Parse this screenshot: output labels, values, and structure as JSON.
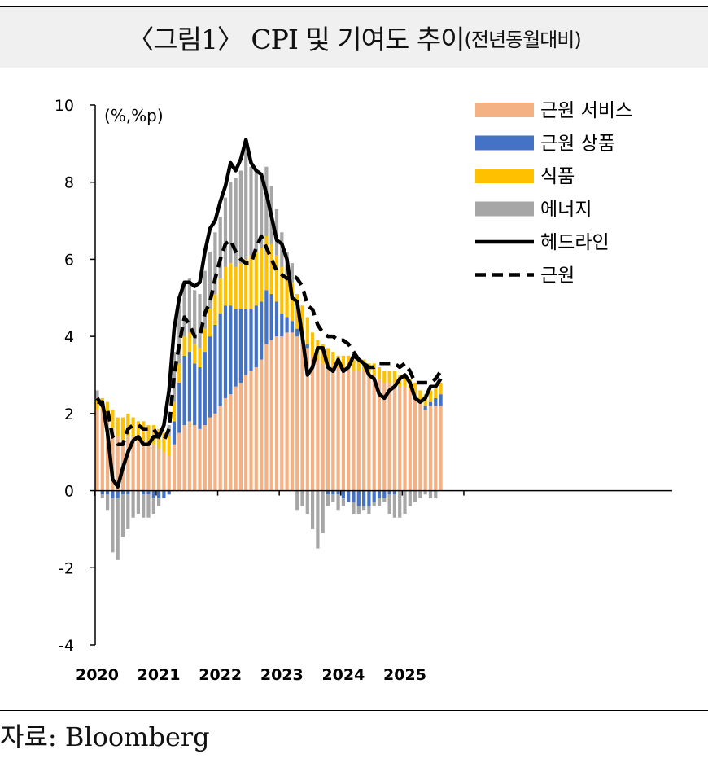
{
  "title": {
    "main": "〈그림1〉 CPI 및 기여도 추이",
    "sub": "(전년동월대비)"
  },
  "source": "자료: Bloomberg",
  "chart_data": {
    "type": "bar",
    "stacked": true,
    "unit_label": "(%,%p)",
    "ylim": [
      -4,
      10
    ],
    "yticks": [
      -4,
      -2,
      0,
      2,
      4,
      6,
      8,
      10
    ],
    "years": [
      "2020",
      "2021",
      "2022",
      "2023",
      "2024",
      "2025"
    ],
    "start_month": "2020-01",
    "months": 68,
    "legend_position": "top-right",
    "grid": false,
    "colors": {
      "core_services": "#F4B183",
      "core_goods": "#4472C4",
      "food": "#FFC000",
      "energy": "#A6A6A6",
      "headline": "#000000",
      "core": "#000000"
    },
    "legend": [
      {
        "key": "core_services",
        "label": "근원 서비스",
        "kind": "bar"
      },
      {
        "key": "core_goods",
        "label": "근원 상품",
        "kind": "bar"
      },
      {
        "key": "food",
        "label": "식품",
        "kind": "bar"
      },
      {
        "key": "energy",
        "label": "에너지",
        "kind": "bar"
      },
      {
        "key": "headline",
        "label": "헤드라인",
        "kind": "line"
      },
      {
        "key": "core",
        "label": "근원",
        "kind": "dash"
      }
    ],
    "series": {
      "core_services": [
        2.1,
        2.1,
        2.0,
        1.6,
        1.4,
        1.3,
        1.4,
        1.4,
        1.3,
        1.3,
        1.2,
        1.2,
        1.1,
        1.0,
        0.9,
        1.2,
        1.5,
        1.7,
        1.8,
        1.7,
        1.6,
        1.7,
        1.9,
        2.0,
        2.2,
        2.4,
        2.5,
        2.7,
        2.8,
        3.0,
        3.1,
        3.2,
        3.4,
        3.8,
        3.9,
        4.0,
        4.0,
        4.1,
        4.1,
        4.0,
        3.9,
        3.7,
        3.5,
        3.4,
        3.3,
        3.3,
        3.2,
        3.2,
        3.2,
        3.2,
        3.1,
        3.1,
        3.1,
        3.0,
        3.0,
        2.9,
        2.8,
        2.8,
        2.8,
        2.7,
        2.7,
        2.6,
        2.5,
        2.3,
        2.1,
        2.2,
        2.2,
        2.2
      ],
      "core_goods": [
        0.0,
        -0.1,
        -0.1,
        -0.2,
        -0.2,
        -0.1,
        -0.1,
        0.0,
        0.0,
        -0.1,
        -0.1,
        -0.2,
        -0.2,
        -0.2,
        -0.1,
        0.6,
        1.3,
        1.8,
        1.8,
        1.6,
        1.6,
        1.9,
        2.1,
        2.3,
        2.4,
        2.4,
        2.3,
        2.0,
        1.9,
        1.7,
        1.6,
        1.6,
        1.5,
        1.4,
        1.2,
        0.9,
        0.6,
        0.4,
        0.3,
        0.2,
        0.1,
        0.1,
        0.0,
        0.0,
        0.0,
        -0.1,
        -0.1,
        -0.1,
        -0.2,
        -0.3,
        -0.3,
        -0.4,
        -0.4,
        -0.4,
        -0.3,
        -0.2,
        -0.2,
        -0.1,
        -0.1,
        0.0,
        0.0,
        0.0,
        0.0,
        0.0,
        0.1,
        0.1,
        0.2,
        0.3
      ],
      "food": [
        0.3,
        0.3,
        0.3,
        0.5,
        0.5,
        0.6,
        0.6,
        0.5,
        0.5,
        0.5,
        0.5,
        0.5,
        0.5,
        0.5,
        0.5,
        0.5,
        0.5,
        0.5,
        0.5,
        0.5,
        0.5,
        0.6,
        0.7,
        0.8,
        0.9,
        1.0,
        1.1,
        1.1,
        1.2,
        1.3,
        1.4,
        1.4,
        1.4,
        1.4,
        1.3,
        1.2,
        1.2,
        1.1,
        1.0,
        0.9,
        0.8,
        0.7,
        0.6,
        0.5,
        0.5,
        0.4,
        0.4,
        0.3,
        0.3,
        0.3,
        0.3,
        0.3,
        0.3,
        0.3,
        0.3,
        0.3,
        0.3,
        0.3,
        0.3,
        0.3,
        0.3,
        0.3,
        0.3,
        0.3,
        0.3,
        0.3,
        0.3,
        0.3
      ],
      "energy": [
        0.2,
        -0.1,
        -0.4,
        -1.4,
        -1.6,
        -1.1,
        -0.9,
        -0.7,
        -0.6,
        -0.6,
        -0.6,
        -0.4,
        -0.2,
        0.0,
        0.3,
        1.3,
        1.5,
        1.4,
        1.4,
        1.4,
        1.4,
        1.5,
        1.5,
        1.6,
        1.6,
        1.8,
        2.1,
        2.3,
        2.4,
        2.9,
        2.3,
        2.1,
        1.9,
        1.8,
        1.5,
        1.2,
        0.9,
        0.6,
        0.5,
        -0.5,
        -0.4,
        -0.6,
        -1.0,
        -1.5,
        -1.1,
        -0.3,
        -0.2,
        -0.4,
        -0.2,
        0.0,
        -0.3,
        -0.2,
        -0.1,
        -0.2,
        -0.1,
        -0.2,
        -0.1,
        -0.5,
        -0.6,
        -0.7,
        -0.6,
        -0.4,
        -0.3,
        -0.2,
        -0.1,
        -0.2,
        -0.2,
        0.0
      ],
      "headline": [
        2.3,
        2.3,
        1.5,
        0.3,
        0.1,
        0.6,
        1.0,
        1.3,
        1.4,
        1.2,
        1.2,
        1.4,
        1.4,
        1.7,
        2.6,
        4.2,
        5.0,
        5.4,
        5.4,
        5.3,
        5.4,
        6.2,
        6.8,
        7.0,
        7.5,
        7.9,
        8.5,
        8.3,
        8.6,
        9.1,
        8.5,
        8.3,
        8.2,
        7.7,
        7.1,
        6.5,
        6.4,
        6.0,
        5.0,
        4.9,
        4.0,
        3.0,
        3.2,
        3.7,
        3.7,
        3.2,
        3.1,
        3.4,
        3.1,
        3.2,
        3.5,
        3.4,
        3.3,
        3.0,
        2.9,
        2.5,
        2.4,
        2.6,
        2.7,
        2.9,
        3.0,
        2.8,
        2.4,
        2.3,
        2.4,
        2.7,
        2.7,
        2.9
      ],
      "core": [
        2.4,
        2.2,
        2.1,
        1.4,
        1.2,
        1.2,
        1.6,
        1.7,
        1.7,
        1.6,
        1.6,
        1.6,
        1.4,
        1.3,
        1.6,
        3.0,
        3.8,
        4.5,
        4.3,
        4.0,
        4.0,
        4.6,
        4.9,
        5.5,
        6.0,
        6.4,
        6.5,
        6.2,
        6.0,
        5.9,
        5.9,
        6.3,
        6.6,
        6.3,
        6.0,
        5.7,
        5.6,
        5.5,
        5.6,
        5.5,
        5.3,
        4.8,
        4.7,
        4.3,
        4.1,
        4.0,
        4.0,
        3.9,
        3.9,
        3.8,
        3.6,
        3.4,
        3.3,
        3.2,
        3.2,
        3.3,
        3.3,
        3.3,
        3.3,
        3.2,
        3.3,
        3.1,
        2.8,
        2.8,
        2.8,
        2.8,
        2.9,
        3.1
      ]
    }
  }
}
